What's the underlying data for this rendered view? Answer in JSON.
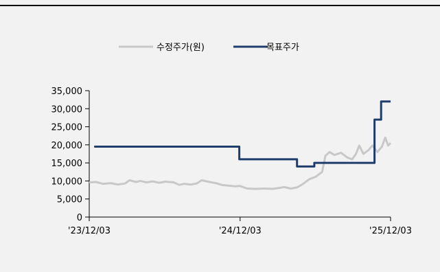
{
  "chart_data": {
    "type": "line",
    "title": "",
    "xlabel": "",
    "ylabel": "",
    "ylim": [
      0,
      35000
    ],
    "yticks": [
      0,
      5000,
      10000,
      15000,
      20000,
      25000,
      30000,
      35000
    ],
    "ytick_labels": [
      "0",
      "5,000",
      "10,000",
      "15,000",
      "20,000",
      "25,000",
      "30,000",
      "35,000"
    ],
    "xlim": [
      "2023-12-03",
      "2025-12-03"
    ],
    "xticks": [
      "2023-12-03",
      "2024-12-03",
      "2025-12-03"
    ],
    "xtick_labels": [
      "'23/12/03",
      "'24/12/03",
      "'25/12/03"
    ],
    "grid": false,
    "legend": "top-center",
    "series": [
      {
        "name": "수정주가(원)",
        "color": "#c8c8c8",
        "points": [
          [
            "2023-12-03",
            9600
          ],
          [
            "2023-12-20",
            9700
          ],
          [
            "2024-01-05",
            9200
          ],
          [
            "2024-01-25",
            9400
          ],
          [
            "2024-02-10",
            9000
          ],
          [
            "2024-02-28",
            9300
          ],
          [
            "2024-03-10",
            10200
          ],
          [
            "2024-03-25",
            9700
          ],
          [
            "2024-04-05",
            10000
          ],
          [
            "2024-04-20",
            9600
          ],
          [
            "2024-05-05",
            9900
          ],
          [
            "2024-05-20",
            9500
          ],
          [
            "2024-06-05",
            9800
          ],
          [
            "2024-06-25",
            9600
          ],
          [
            "2024-07-08",
            8900
          ],
          [
            "2024-07-20",
            9200
          ],
          [
            "2024-08-05",
            9000
          ],
          [
            "2024-08-20",
            9300
          ],
          [
            "2024-09-01",
            10200
          ],
          [
            "2024-09-20",
            9700
          ],
          [
            "2024-10-05",
            9400
          ],
          [
            "2024-10-20",
            8900
          ],
          [
            "2024-11-05",
            8700
          ],
          [
            "2024-11-20",
            8500
          ],
          [
            "2024-12-03",
            8600
          ],
          [
            "2024-12-20",
            7900
          ],
          [
            "2025-01-10",
            7800
          ],
          [
            "2025-01-30",
            7900
          ],
          [
            "2025-02-20",
            7800
          ],
          [
            "2025-03-10",
            8100
          ],
          [
            "2025-03-20",
            8300
          ],
          [
            "2025-04-05",
            7900
          ],
          [
            "2025-04-20",
            8200
          ],
          [
            "2025-05-05",
            9200
          ],
          [
            "2025-05-20",
            10500
          ],
          [
            "2025-06-05",
            11200
          ],
          [
            "2025-06-20",
            12500
          ],
          [
            "2025-06-28",
            17000
          ],
          [
            "2025-07-08",
            18000
          ],
          [
            "2025-07-20",
            17200
          ],
          [
            "2025-08-05",
            17800
          ],
          [
            "2025-08-20",
            16500
          ],
          [
            "2025-09-01",
            16000
          ],
          [
            "2025-09-10",
            17500
          ],
          [
            "2025-09-18",
            19800
          ],
          [
            "2025-09-28",
            17500
          ],
          [
            "2025-10-10",
            18500
          ],
          [
            "2025-10-20",
            19800
          ],
          [
            "2025-11-01",
            18000
          ],
          [
            "2025-11-12",
            19500
          ],
          [
            "2025-11-20",
            22000
          ],
          [
            "2025-11-27",
            19800
          ],
          [
            "2025-12-03",
            20500
          ]
        ]
      },
      {
        "name": "목표주가",
        "color": "#1f3d6b",
        "step": true,
        "points": [
          [
            "2023-12-15",
            19500
          ],
          [
            "2024-12-01",
            19500
          ],
          [
            "2024-12-01",
            16000
          ],
          [
            "2025-04-20",
            16000
          ],
          [
            "2025-04-20",
            14000
          ],
          [
            "2025-06-01",
            14000
          ],
          [
            "2025-06-01",
            15000
          ],
          [
            "2025-10-25",
            15000
          ],
          [
            "2025-10-25",
            27000
          ],
          [
            "2025-11-10",
            27000
          ],
          [
            "2025-11-10",
            32000
          ],
          [
            "2025-12-03",
            32000
          ]
        ]
      }
    ]
  }
}
